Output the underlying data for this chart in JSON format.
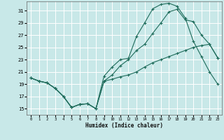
{
  "xlabel": "Humidex (Indice chaleur)",
  "bg_color": "#c8e8e8",
  "grid_color": "#ffffff",
  "line_color": "#1e6b5a",
  "xlim": [
    -0.5,
    23.5
  ],
  "ylim": [
    14.0,
    32.5
  ],
  "xticks": [
    0,
    1,
    2,
    3,
    4,
    5,
    6,
    7,
    8,
    9,
    10,
    11,
    12,
    13,
    14,
    15,
    16,
    17,
    18,
    19,
    20,
    21,
    22,
    23
  ],
  "yticks": [
    15,
    17,
    19,
    21,
    23,
    25,
    27,
    29,
    31
  ],
  "line1_x": [
    0,
    1,
    2,
    3,
    4,
    5,
    6,
    7,
    8,
    9,
    10,
    11,
    12,
    13,
    14,
    15,
    16,
    17,
    18,
    19,
    20,
    21,
    22,
    23
  ],
  "line1_y": [
    20.0,
    19.5,
    19.2,
    18.3,
    17.0,
    15.2,
    15.7,
    15.8,
    15.0,
    20.3,
    21.8,
    23.0,
    23.2,
    26.8,
    29.0,
    31.3,
    32.0,
    32.2,
    31.7,
    29.8,
    26.0,
    23.5,
    21.0,
    19.0
  ],
  "line2_x": [
    0,
    1,
    2,
    3,
    4,
    5,
    6,
    7,
    8,
    9,
    10,
    11,
    12,
    13,
    14,
    15,
    16,
    17,
    18,
    19,
    20,
    21,
    22,
    23
  ],
  "line2_y": [
    20.0,
    19.5,
    19.2,
    18.3,
    17.0,
    15.2,
    15.7,
    15.8,
    15.0,
    19.5,
    20.5,
    22.0,
    23.0,
    24.5,
    25.5,
    27.3,
    29.0,
    30.8,
    31.2,
    29.5,
    29.2,
    27.0,
    25.5,
    23.3
  ],
  "line3_x": [
    0,
    1,
    2,
    3,
    4,
    5,
    6,
    7,
    8,
    9,
    10,
    11,
    12,
    13,
    14,
    15,
    16,
    17,
    18,
    19,
    20,
    21,
    22,
    23
  ],
  "line3_y": [
    20.0,
    19.5,
    19.2,
    18.3,
    17.0,
    15.2,
    15.7,
    15.8,
    15.0,
    19.5,
    19.8,
    20.2,
    20.5,
    21.0,
    21.8,
    22.5,
    23.0,
    23.5,
    24.0,
    24.5,
    25.0,
    25.3,
    25.5,
    23.3
  ]
}
